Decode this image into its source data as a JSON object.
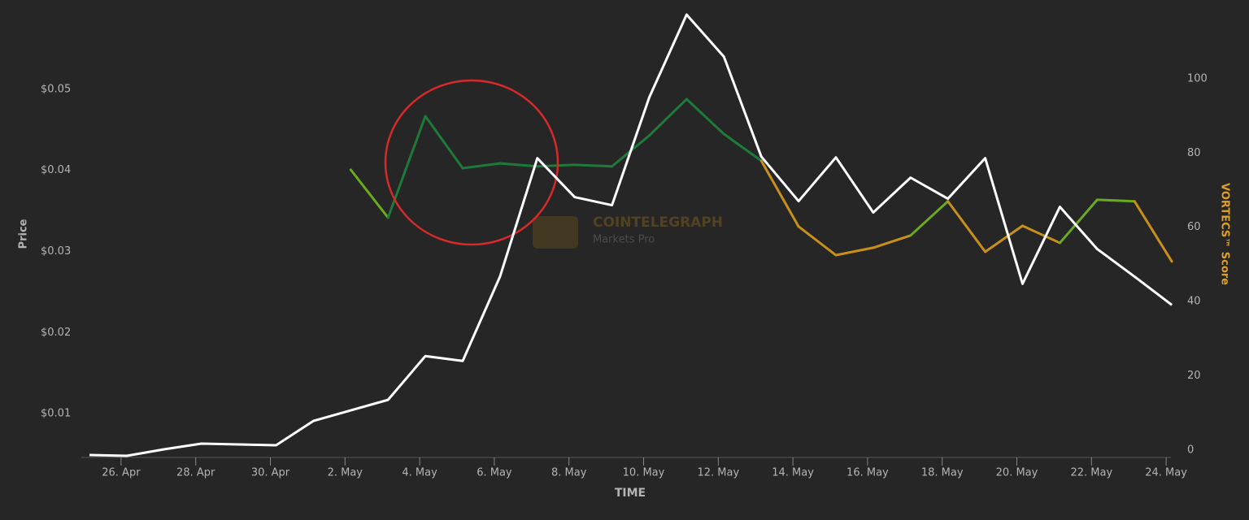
{
  "chart_data": {
    "type": "line",
    "x_label": "TIME",
    "y_label": "Price",
    "y2_label": "VORTECS™ Score",
    "watermark": {
      "title": "COINTELEGRAPH",
      "subtitle": "Markets Pro"
    },
    "x": [
      "25. Apr",
      "26. Apr",
      "27. Apr",
      "28. Apr",
      "29. Apr",
      "30. Apr",
      "1. May",
      "2. May",
      "3. May",
      "4. May",
      "5. May",
      "6. May",
      "7. May",
      "8. May",
      "9. May",
      "10. May",
      "11. May",
      "12. May",
      "13. May",
      "14. May",
      "15. May",
      "16. May",
      "17. May",
      "18. May",
      "19. May",
      "20. May",
      "21. May",
      "22. May",
      "23. May",
      "24. May"
    ],
    "xticks": [
      "26. Apr",
      "28. Apr",
      "30. Apr",
      "2. May",
      "4. May",
      "6. May",
      "8. May",
      "10. May",
      "12. May",
      "14. May",
      "16. May",
      "18. May",
      "20. May",
      "22. May",
      "24. May"
    ],
    "ylim": [
      0.0049,
      0.06
    ],
    "yticks": [
      {
        "value": 0.01,
        "label": "$0.01"
      },
      {
        "value": 0.02,
        "label": "$0.02"
      },
      {
        "value": 0.03,
        "label": "$0.03"
      },
      {
        "value": 0.04,
        "label": "$0.04"
      },
      {
        "value": 0.05,
        "label": "$0.05"
      }
    ],
    "y2lim": [
      -1.3,
      119
    ],
    "y2ticks": [
      0,
      20,
      40,
      60,
      80,
      100
    ],
    "y2_label_color": "#e0a020",
    "series": [
      {
        "color": "#ffffff",
        "values": [
          0.0049,
          0.0048,
          0.0056,
          0.0063,
          0.0062,
          0.0061,
          0.0091,
          0.0104,
          0.0117,
          0.0171,
          0.0165,
          0.0269,
          0.0415,
          0.0367,
          0.0357,
          0.049,
          0.0592,
          0.054,
          0.0417,
          0.0362,
          0.0416,
          0.0348,
          0.0391,
          0.0365,
          0.0415,
          0.026,
          0.0355,
          0.0303,
          0.0269,
          0.0234
        ]
      },
      {
        "axis": "y2",
        "values": [
          null,
          null,
          null,
          null,
          null,
          null,
          null,
          75.5,
          62.6,
          89.9,
          75.9,
          77.2,
          76.4,
          76.8,
          76.4,
          84.7,
          94.5,
          85.1,
          77.9,
          60.2,
          52.5,
          54.5,
          57.8,
          67.0,
          53.4,
          60.4,
          55.8,
          67.4,
          67.0,
          50.8
        ],
        "colors": [
          null,
          null,
          null,
          null,
          null,
          null,
          null,
          "#6aaa1e",
          "#6aaa1e",
          "#1e7a3a",
          "#1e7a3a",
          "#1e7a3a",
          "#1e7a3a",
          "#1e7a3a",
          "#1e7a3a",
          "#1e7a3a",
          "#1e7a3a",
          "#1e7a3a",
          "#1e7a3a",
          "#c8901a",
          "#c8901a",
          "#c8901a",
          "#c8901a",
          "#6aaa1e",
          "#c8901a",
          "#c8901a",
          "#c8901a",
          "#6aaa1e",
          "#6aaa1e",
          "#c8901a"
        ]
      }
    ]
  }
}
